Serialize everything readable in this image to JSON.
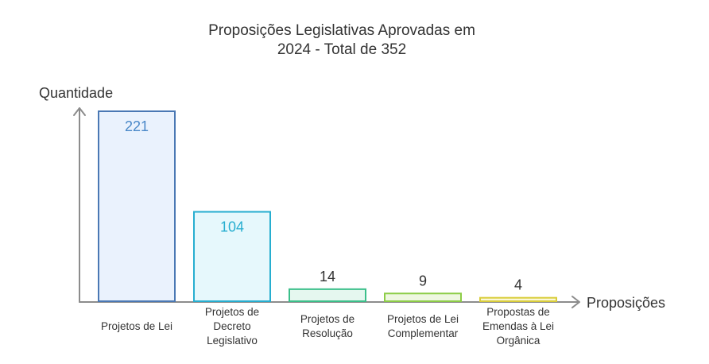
{
  "chart_data": {
    "type": "bar",
    "title_lines": [
      "Proposições Legislativas Aprovadas em",
      "2024 - Total de 352"
    ],
    "xlabel": "Proposições",
    "ylabel": "Quantidade",
    "ylim": [
      0,
      221
    ],
    "grid": false,
    "categories": [
      [
        "Projetos de Lei"
      ],
      [
        "Projetos de",
        "Decreto",
        "Legislativo"
      ],
      [
        "Projetos de",
        "Resolução"
      ],
      [
        "Projetos de Lei",
        "Complementar"
      ],
      [
        "Propostas de",
        "Emendas à Lei",
        "Orgânica"
      ]
    ],
    "values": [
      221,
      104,
      14,
      9,
      4
    ],
    "colors": [
      {
        "fill": "#eaf2fd",
        "stroke": "#4a78b4",
        "label": "#4a88c8"
      },
      {
        "fill": "#e6f8fc",
        "stroke": "#27aed0",
        "label": "#27aed0"
      },
      {
        "fill": "#e5f7ef",
        "stroke": "#3bbf8a",
        "label": "#333333"
      },
      {
        "fill": "#eef7e1",
        "stroke": "#8ccc46",
        "label": "#333333"
      },
      {
        "fill": "#fbf8d9",
        "stroke": "#d9cd3a",
        "label": "#333333"
      }
    ],
    "axis_color": "#8c8c8c"
  }
}
